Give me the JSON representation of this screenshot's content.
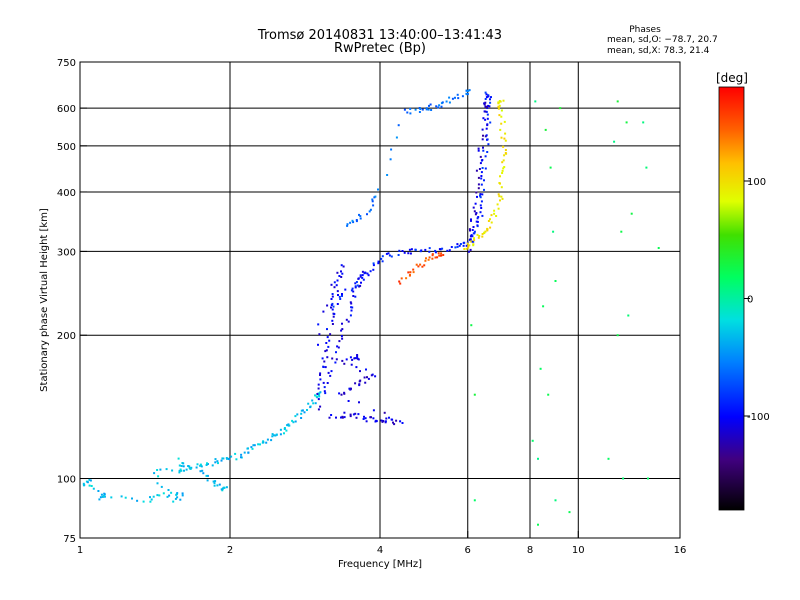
{
  "chart_data": {
    "type": "scatter",
    "title": "Tromsø 20140831 13:40:00–13:41:43",
    "subtitle": "RwPretec (Bp)",
    "stats": {
      "heading": "Phases",
      "line1": "mean, sd,O: −78.7, 20.7",
      "line2": "mean, sd,X:  78.3, 21.4"
    },
    "xlabel": "Frequency [MHz]",
    "ylabel": "Stationary phase Virtual Height [km]",
    "x_scale": "log2",
    "y_scale": "log",
    "xlim": [
      1,
      16
    ],
    "ylim": [
      75,
      750
    ],
    "x_ticks": [
      1,
      2,
      4,
      6,
      8,
      10,
      16
    ],
    "x_tick_labels": [
      "1",
      "2",
      "4",
      "6",
      "8",
      "10",
      "16"
    ],
    "x_grid": [
      2,
      4,
      6,
      8,
      10
    ],
    "y_ticks": [
      75,
      100,
      200,
      300,
      400,
      500,
      600,
      750
    ],
    "y_tick_labels": [
      "75",
      "100",
      "200",
      "300",
      "400",
      "500",
      "600",
      "750"
    ],
    "y_grid": [
      100,
      200,
      300,
      400,
      500,
      600
    ],
    "colorbar": {
      "label": "[deg]",
      "range": [
        -180,
        180
      ],
      "ticks": [
        100,
        0,
        -100
      ],
      "tick_labels": [
        "100",
        "0",
        "-100"
      ]
    },
    "traces": [
      {
        "name": "low_scatter",
        "phase": -30,
        "points": [
          [
            1.02,
            97
          ],
          [
            1.05,
            99
          ],
          [
            1.1,
            91
          ],
          [
            1.12,
            92
          ],
          [
            1.35,
            90
          ],
          [
            1.45,
            92
          ],
          [
            1.6,
            93
          ],
          [
            1.55,
            89
          ],
          [
            1.4,
            103
          ],
          [
            1.6,
            104
          ],
          [
            1.58,
            109
          ],
          [
            1.75,
            103
          ],
          [
            1.85,
            98
          ],
          [
            1.95,
            95
          ]
        ]
      },
      {
        "name": "F_lower_trace",
        "phase": -30,
        "points": [
          [
            1.6,
            105
          ],
          [
            1.7,
            106
          ],
          [
            1.8,
            107
          ],
          [
            1.9,
            109
          ],
          [
            2.0,
            110
          ],
          [
            2.1,
            112
          ],
          [
            2.2,
            115
          ],
          [
            2.3,
            118
          ],
          [
            2.4,
            121
          ],
          [
            2.5,
            124
          ],
          [
            2.6,
            128
          ],
          [
            2.7,
            132
          ],
          [
            2.8,
            137
          ],
          [
            2.9,
            143
          ],
          [
            3.0,
            150
          ]
        ]
      },
      {
        "name": "F1_cusp_column",
        "phase": -105,
        "points": [
          [
            3.0,
            140
          ],
          [
            3.05,
            160
          ],
          [
            3.1,
            180
          ],
          [
            3.15,
            200
          ],
          [
            3.2,
            220
          ],
          [
            3.25,
            240
          ],
          [
            3.3,
            260
          ],
          [
            3.35,
            280
          ],
          [
            3.0,
            210
          ],
          [
            3.1,
            150
          ],
          [
            3.2,
            170
          ],
          [
            3.3,
            190
          ],
          [
            3.4,
            210
          ],
          [
            3.5,
            230
          ],
          [
            3.6,
            250
          ],
          [
            3.7,
            270
          ]
        ]
      },
      {
        "name": "F1_lower_block",
        "phase": -110,
        "points": [
          [
            3.2,
            135
          ],
          [
            3.4,
            136
          ],
          [
            3.6,
            135
          ],
          [
            3.8,
            133
          ],
          [
            4.0,
            133
          ],
          [
            4.2,
            132
          ],
          [
            4.4,
            131
          ],
          [
            3.3,
            150
          ],
          [
            3.5,
            155
          ],
          [
            3.7,
            160
          ],
          [
            3.9,
            165
          ],
          [
            3.4,
            175
          ],
          [
            3.6,
            180
          ]
        ]
      },
      {
        "name": "F2_trace",
        "phase": -90,
        "points": [
          [
            3.2,
            230
          ],
          [
            3.4,
            245
          ],
          [
            3.6,
            258
          ],
          [
            3.8,
            270
          ],
          [
            4.0,
            285
          ],
          [
            4.2,
            295
          ],
          [
            4.5,
            300
          ],
          [
            4.8,
            300
          ],
          [
            5.2,
            302
          ],
          [
            5.6,
            305
          ],
          [
            5.9,
            310
          ],
          [
            6.1,
            318
          ],
          [
            6.2,
            330
          ],
          [
            6.3,
            350
          ],
          [
            6.4,
            380
          ],
          [
            6.45,
            420
          ],
          [
            6.5,
            470
          ],
          [
            6.55,
            530
          ],
          [
            6.6,
            600
          ],
          [
            6.6,
            640
          ]
        ]
      },
      {
        "name": "F2_inner_trace",
        "phase": -115,
        "points": [
          [
            6.0,
            300
          ],
          [
            6.1,
            330
          ],
          [
            6.2,
            360
          ],
          [
            6.3,
            400
          ],
          [
            6.35,
            450
          ],
          [
            6.4,
            500
          ],
          [
            6.5,
            560
          ],
          [
            6.55,
            610
          ]
        ]
      },
      {
        "name": "X_trace",
        "phase": 95,
        "points": [
          [
            5.9,
            305
          ],
          [
            6.1,
            310
          ],
          [
            6.3,
            320
          ],
          [
            6.5,
            330
          ],
          [
            6.7,
            345
          ],
          [
            6.9,
            370
          ],
          [
            7.0,
            400
          ],
          [
            7.05,
            440
          ],
          [
            7.1,
            480
          ],
          [
            7.1,
            520
          ],
          [
            7.0,
            580
          ],
          [
            7.0,
            620
          ]
        ]
      },
      {
        "name": "X_trace_warm",
        "phase": 150,
        "points": [
          [
            4.4,
            258
          ],
          [
            4.6,
            268
          ],
          [
            4.8,
            280
          ],
          [
            5.0,
            290
          ],
          [
            5.3,
            296
          ]
        ]
      },
      {
        "name": "upper_left_trace",
        "phase": -60,
        "points": [
          [
            3.4,
            340
          ],
          [
            3.6,
            350
          ],
          [
            3.8,
            370
          ],
          [
            4.0,
            400
          ],
          [
            4.5,
            590
          ],
          [
            4.8,
            595
          ],
          [
            5.0,
            600
          ],
          [
            5.3,
            610
          ],
          [
            5.6,
            630
          ],
          [
            6.0,
            650
          ]
        ]
      },
      {
        "name": "sparse_noise",
        "phase": 20,
        "points": [
          [
            8.2,
            620
          ],
          [
            8.6,
            540
          ],
          [
            8.8,
            450
          ],
          [
            9.2,
            600
          ],
          [
            8.9,
            330
          ],
          [
            9.0,
            260
          ],
          [
            8.5,
            230
          ],
          [
            8.4,
            170
          ],
          [
            8.7,
            150
          ],
          [
            8.3,
            110
          ],
          [
            9.0,
            90
          ],
          [
            8.1,
            120
          ],
          [
            12.0,
            620
          ],
          [
            12.5,
            560
          ],
          [
            11.8,
            510
          ],
          [
            12.2,
            330
          ],
          [
            12.8,
            360
          ],
          [
            12.6,
            220
          ],
          [
            12.0,
            200
          ],
          [
            11.5,
            110
          ],
          [
            12.3,
            100
          ],
          [
            13.8,
            100
          ],
          [
            13.7,
            450
          ],
          [
            14.5,
            305
          ],
          [
            13.5,
            560
          ],
          [
            8.3,
            80
          ],
          [
            9.6,
            85
          ],
          [
            6.2,
            90
          ],
          [
            6.2,
            150
          ],
          [
            6.1,
            210
          ]
        ]
      }
    ]
  }
}
